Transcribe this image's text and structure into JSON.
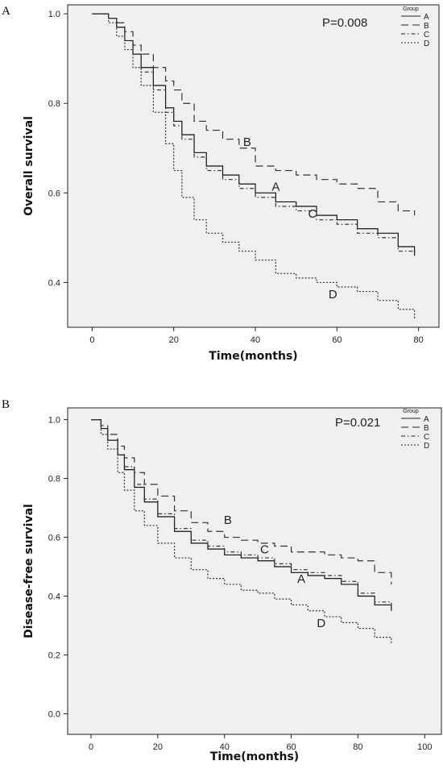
{
  "chart_data": [
    {
      "panel": "A",
      "type": "line",
      "xlabel": "Time(months)",
      "ylabel": "Overall survival",
      "xticks": [
        0,
        20,
        40,
        60,
        80
      ],
      "yticks": [
        "0.4",
        "0.6",
        "0.8",
        "1.0"
      ],
      "xlim": [
        -6,
        85
      ],
      "ylim": [
        0.3,
        1.02
      ],
      "grid": false,
      "annotation": "P=0.008",
      "legend": {
        "title": "Group",
        "position": "top-right",
        "entries": [
          "A",
          "B",
          "C",
          "D"
        ]
      },
      "series": [
        {
          "name": "A",
          "style": "solid",
          "x": [
            0,
            4,
            6,
            8,
            10,
            12,
            15,
            18,
            20,
            22,
            25,
            28,
            32,
            36,
            40,
            45,
            50,
            55,
            60,
            65,
            70,
            75,
            79
          ],
          "y": [
            1.0,
            0.99,
            0.97,
            0.94,
            0.91,
            0.88,
            0.84,
            0.79,
            0.76,
            0.73,
            0.69,
            0.66,
            0.64,
            0.62,
            0.6,
            0.58,
            0.57,
            0.55,
            0.54,
            0.52,
            0.51,
            0.48,
            0.46
          ]
        },
        {
          "name": "B",
          "style": "dashed",
          "x": [
            0,
            4,
            6,
            8,
            10,
            12,
            15,
            18,
            20,
            22,
            25,
            28,
            32,
            36,
            40,
            45,
            50,
            55,
            60,
            65,
            70,
            75,
            79
          ],
          "y": [
            1.0,
            0.99,
            0.98,
            0.96,
            0.93,
            0.91,
            0.88,
            0.85,
            0.83,
            0.8,
            0.76,
            0.74,
            0.72,
            0.7,
            0.66,
            0.65,
            0.64,
            0.63,
            0.62,
            0.61,
            0.58,
            0.56,
            0.55
          ]
        },
        {
          "name": "C",
          "style": "dash-dot",
          "x": [
            0,
            4,
            6,
            8,
            10,
            12,
            15,
            18,
            20,
            22,
            25,
            28,
            32,
            36,
            40,
            45,
            50,
            55,
            60,
            65,
            70,
            75,
            79
          ],
          "y": [
            1.0,
            0.99,
            0.97,
            0.94,
            0.91,
            0.87,
            0.83,
            0.78,
            0.75,
            0.72,
            0.68,
            0.65,
            0.63,
            0.61,
            0.59,
            0.57,
            0.56,
            0.54,
            0.53,
            0.51,
            0.5,
            0.47,
            0.46
          ]
        },
        {
          "name": "D",
          "style": "dotted",
          "x": [
            0,
            4,
            6,
            8,
            10,
            12,
            15,
            18,
            20,
            22,
            25,
            28,
            32,
            36,
            40,
            45,
            50,
            55,
            60,
            65,
            70,
            75,
            79
          ],
          "y": [
            1.0,
            0.98,
            0.95,
            0.92,
            0.88,
            0.84,
            0.78,
            0.71,
            0.65,
            0.59,
            0.54,
            0.51,
            0.49,
            0.47,
            0.45,
            0.42,
            0.41,
            0.4,
            0.39,
            0.38,
            0.36,
            0.34,
            0.32
          ]
        }
      ],
      "curve_labels": [
        {
          "text": "B",
          "x": 38,
          "y": 0.705
        },
        {
          "text": "A",
          "x": 45,
          "y": 0.605
        },
        {
          "text": "C",
          "x": 54,
          "y": 0.545
        },
        {
          "text": "D",
          "x": 59,
          "y": 0.365
        }
      ]
    },
    {
      "panel": "B",
      "type": "line",
      "xlabel": "Time(months)",
      "ylabel": "Disease-free survival",
      "xticks": [
        0,
        20,
        40,
        60,
        80,
        100
      ],
      "yticks": [
        "0.0",
        "0.2",
        "0.4",
        "0.6",
        "0.8",
        "1.0"
      ],
      "xlim": [
        -7,
        105
      ],
      "ylim": [
        -0.07,
        1.04
      ],
      "grid": false,
      "annotation": "P=0.021",
      "legend": {
        "title": "Group",
        "position": "top-right",
        "entries": [
          "A",
          "B",
          "C",
          "D"
        ]
      },
      "series": [
        {
          "name": "A",
          "style": "solid",
          "x": [
            0,
            3,
            5,
            8,
            10,
            13,
            16,
            20,
            25,
            30,
            35,
            40,
            45,
            50,
            55,
            60,
            65,
            70,
            75,
            80,
            85,
            90
          ],
          "y": [
            1.0,
            0.97,
            0.93,
            0.88,
            0.83,
            0.77,
            0.72,
            0.67,
            0.62,
            0.58,
            0.56,
            0.54,
            0.53,
            0.52,
            0.5,
            0.48,
            0.47,
            0.46,
            0.44,
            0.4,
            0.37,
            0.35
          ]
        },
        {
          "name": "B",
          "style": "dashed",
          "x": [
            0,
            3,
            5,
            8,
            10,
            13,
            16,
            20,
            25,
            30,
            35,
            40,
            45,
            50,
            55,
            60,
            65,
            70,
            75,
            80,
            85,
            90
          ],
          "y": [
            1.0,
            0.98,
            0.95,
            0.91,
            0.87,
            0.82,
            0.78,
            0.74,
            0.69,
            0.65,
            0.62,
            0.6,
            0.59,
            0.58,
            0.57,
            0.55,
            0.55,
            0.54,
            0.53,
            0.52,
            0.48,
            0.44
          ]
        },
        {
          "name": "C",
          "style": "dash-dot",
          "x": [
            0,
            3,
            5,
            8,
            10,
            13,
            16,
            20,
            25,
            30,
            35,
            40,
            45,
            50,
            55,
            60,
            65,
            70,
            75,
            80,
            85,
            90
          ],
          "y": [
            1.0,
            0.97,
            0.93,
            0.88,
            0.84,
            0.78,
            0.73,
            0.68,
            0.63,
            0.59,
            0.57,
            0.55,
            0.54,
            0.53,
            0.51,
            0.49,
            0.48,
            0.47,
            0.45,
            0.41,
            0.38,
            0.36
          ]
        },
        {
          "name": "D",
          "style": "dotted",
          "x": [
            0,
            3,
            5,
            8,
            10,
            13,
            16,
            20,
            25,
            30,
            35,
            40,
            45,
            50,
            55,
            60,
            65,
            70,
            75,
            80,
            85,
            90
          ],
          "y": [
            1.0,
            0.95,
            0.9,
            0.82,
            0.76,
            0.69,
            0.64,
            0.58,
            0.53,
            0.49,
            0.46,
            0.44,
            0.42,
            0.41,
            0.39,
            0.37,
            0.35,
            0.33,
            0.31,
            0.29,
            0.26,
            0.24
          ]
        }
      ],
      "curve_labels": [
        {
          "text": "B",
          "x": 41,
          "y": 0.645
        },
        {
          "text": "C",
          "x": 52,
          "y": 0.545
        },
        {
          "text": "A",
          "x": 63,
          "y": 0.445
        },
        {
          "text": "D",
          "x": 69,
          "y": 0.295
        }
      ]
    }
  ]
}
